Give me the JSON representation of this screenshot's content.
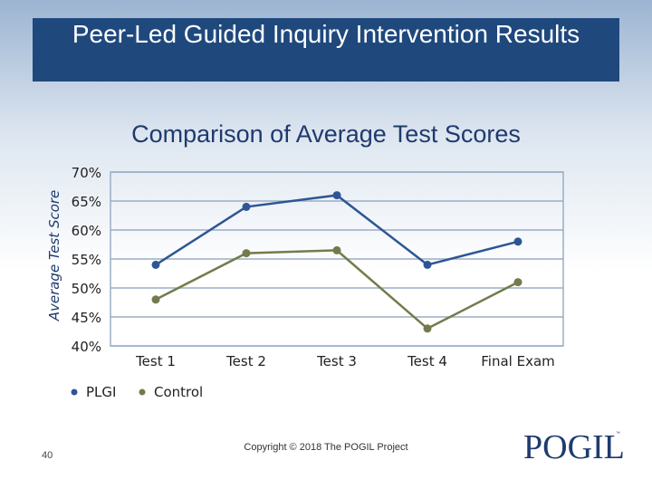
{
  "slide": {
    "title": "Peer-Led Guided Inquiry Intervention Results",
    "page_number": "40",
    "copyright": "Copyright © 2018 The POGIL Project",
    "logo_text": "POGIL",
    "logo_tm": "™"
  },
  "colors": {
    "banner": "#1f497d",
    "plgi": "#2e5694",
    "control": "#757a4c",
    "grid": "#9aaec6"
  },
  "chart_data": {
    "type": "line",
    "title": "Comparison of Average Test Scores",
    "ylabel": "Average Test Score",
    "xlabel": "",
    "categories": [
      "Test 1",
      "Test 2",
      "Test 3",
      "Test 4",
      "Final Exam"
    ],
    "ylim": [
      40,
      70
    ],
    "yticks": [
      40,
      45,
      50,
      55,
      60,
      65,
      70
    ],
    "ytick_labels": [
      "40%",
      "45%",
      "50%",
      "55%",
      "60%",
      "65%",
      "70%"
    ],
    "grid": true,
    "legend": "bottom-left",
    "series": [
      {
        "name": "PLGI",
        "values": [
          54,
          64,
          66,
          54,
          58
        ]
      },
      {
        "name": "Control",
        "values": [
          48,
          56,
          56.5,
          43,
          51
        ]
      }
    ]
  }
}
